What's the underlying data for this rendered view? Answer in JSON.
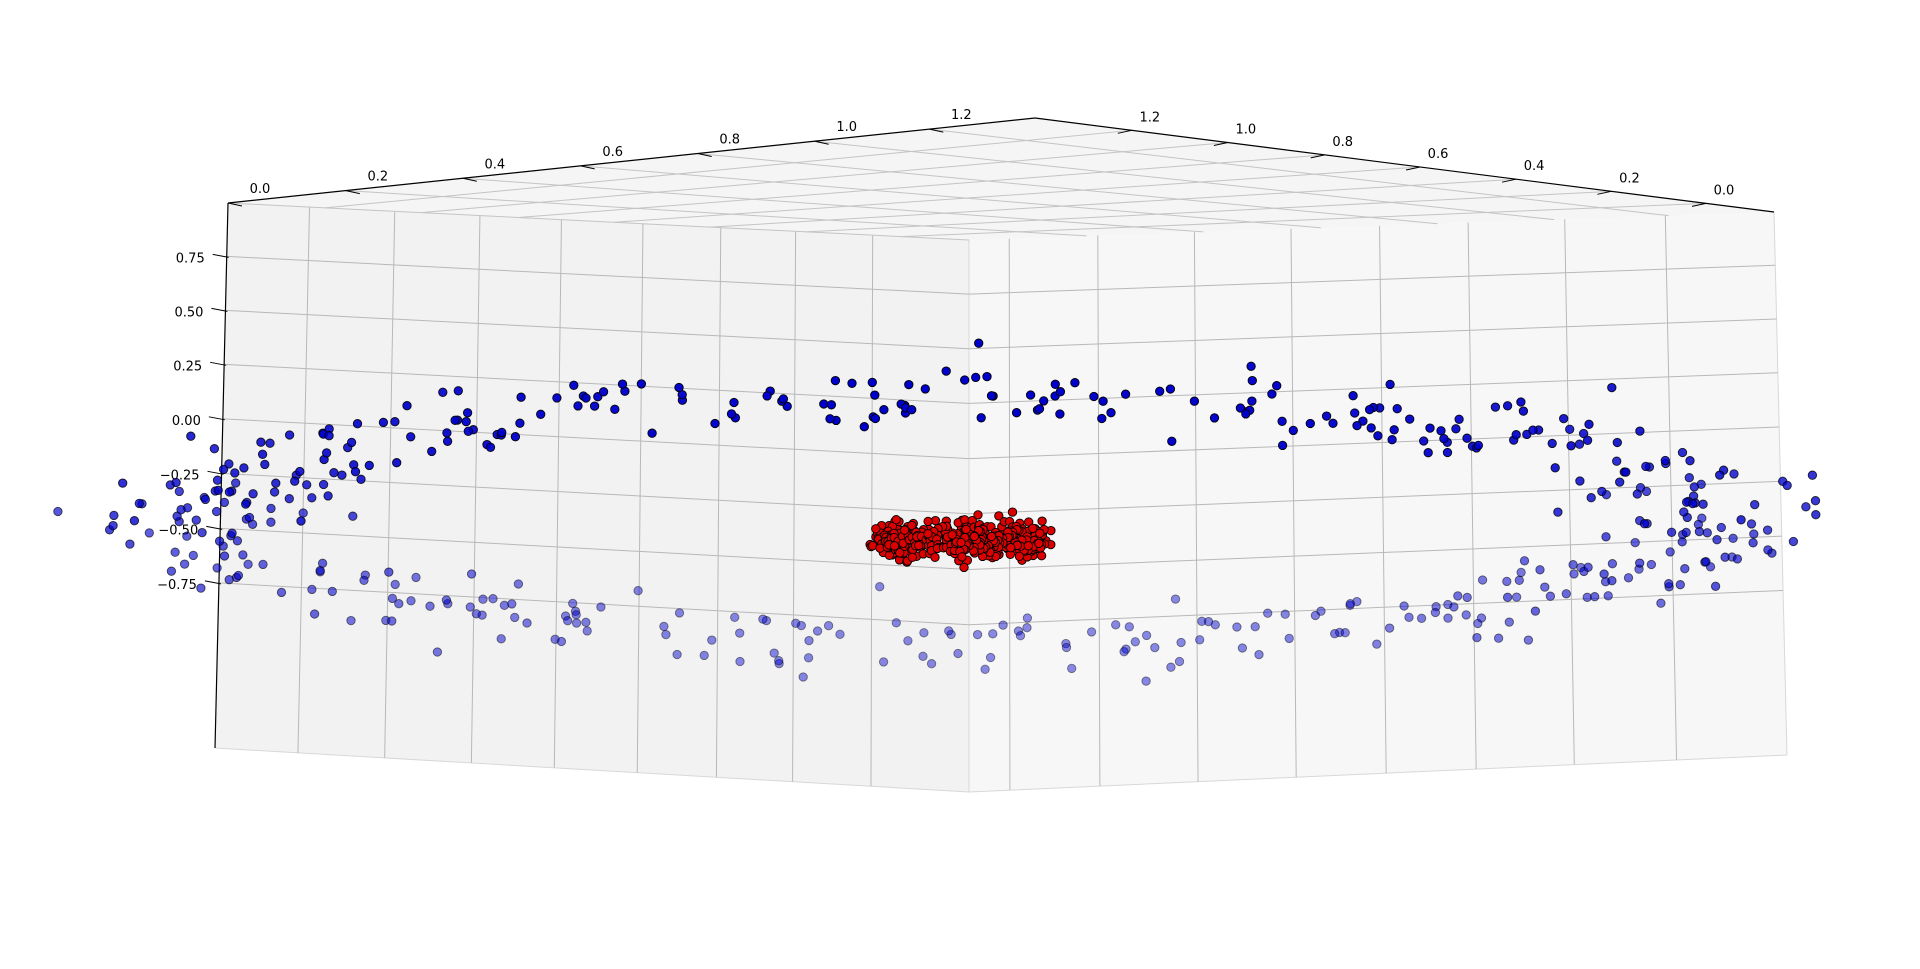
{
  "chart_data": {
    "type": "scatter",
    "projection": "3d",
    "title": "",
    "xlabel": "",
    "ylabel": "",
    "zlabel": "",
    "grid": true,
    "x_ticks": [
      "0.0",
      "0.2",
      "0.4",
      "0.6",
      "0.8",
      "1.0",
      "1.2"
    ],
    "y_ticks": [
      "0.0",
      "0.2",
      "0.4",
      "0.6",
      "0.8",
      "1.0",
      "1.2"
    ],
    "z_ticks": [
      "0.75",
      "0.50",
      "0.25",
      "0.00",
      "−0.25",
      "−0.50",
      "−0.75"
    ],
    "series": [
      {
        "color": "#0000cc",
        "edge": "#000000",
        "shape": "ring",
        "radius": 1.0,
        "z_range": [
          -0.75,
          0.75
        ],
        "count": 500
      },
      {
        "color": "#dd0000",
        "edge": "#000000",
        "shape": "ring",
        "radius": 0.1,
        "z_range": [
          -0.08,
          0.08
        ],
        "count": 500
      }
    ]
  }
}
